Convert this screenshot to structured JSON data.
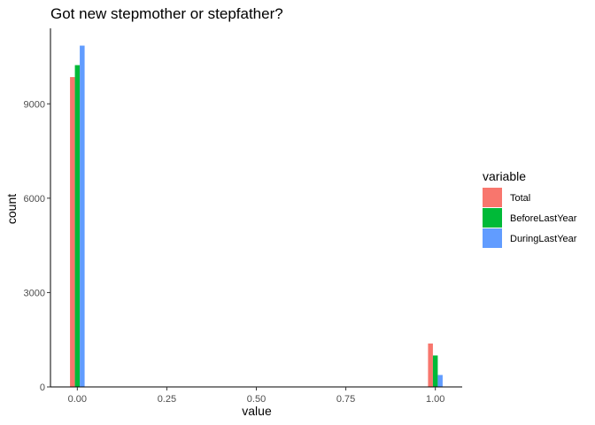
{
  "chart_data": {
    "type": "bar",
    "title": "Got new stepmother or stepfather?",
    "xlabel": "value",
    "ylabel": "count",
    "x_ticks": [
      "0.00",
      "0.25",
      "0.50",
      "0.75",
      "1.00"
    ],
    "x_tick_values": [
      0,
      0.25,
      0.5,
      0.75,
      1.0
    ],
    "y_ticks": [
      "0",
      "3000",
      "6000",
      "9000"
    ],
    "y_tick_values": [
      0,
      3000,
      6000,
      9000
    ],
    "xlim": [
      -0.075,
      1.075
    ],
    "ylim": [
      0,
      11400
    ],
    "categories": [
      0,
      1
    ],
    "series": [
      {
        "name": "Total",
        "color": "#F8766D",
        "values": [
          9850,
          1380
        ]
      },
      {
        "name": "BeforeLastYear",
        "color": "#00BA38",
        "values": [
          10230,
          1000
        ]
      },
      {
        "name": "DuringLastYear",
        "color": "#619CFF",
        "values": [
          10850,
          380
        ]
      }
    ],
    "legend": {
      "title": "variable",
      "position": "right"
    },
    "grid": false
  }
}
